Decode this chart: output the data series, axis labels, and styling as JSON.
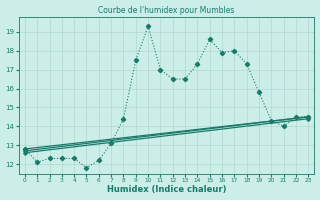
{
  "title": "Courbe de l'humidex pour Mumbles",
  "xlabel": "Humidex (Indice chaleur)",
  "background_color": "#cceee8",
  "grid_color": "#b0d8d0",
  "line_color": "#1a7a6a",
  "xlim": [
    -0.5,
    23.5
  ],
  "ylim": [
    11.5,
    19.8
  ],
  "xticks": [
    0,
    1,
    2,
    3,
    4,
    5,
    6,
    7,
    8,
    9,
    10,
    11,
    12,
    13,
    14,
    15,
    16,
    17,
    18,
    19,
    20,
    21,
    22,
    23
  ],
  "yticks": [
    12,
    13,
    14,
    15,
    16,
    17,
    18,
    19
  ],
  "series1_x": [
    0,
    1,
    2,
    3,
    4,
    5,
    6,
    7,
    8,
    9,
    10,
    11,
    12,
    13,
    14,
    15,
    16,
    17,
    18,
    19,
    20,
    21,
    22,
    23
  ],
  "series1_y": [
    12.8,
    12.1,
    12.3,
    12.3,
    12.3,
    11.8,
    12.2,
    13.1,
    14.4,
    17.5,
    19.3,
    17.0,
    16.5,
    16.5,
    17.3,
    18.6,
    17.9,
    18.0,
    17.3,
    15.8,
    14.3,
    14.0,
    14.5,
    14.5
  ],
  "series2_x": [
    0,
    23
  ],
  "series2_y": [
    12.8,
    14.5
  ],
  "series3_x": [
    0,
    23
  ],
  "series3_y": [
    12.7,
    14.5
  ],
  "series4_x": [
    0,
    23
  ],
  "series4_y": [
    12.6,
    14.4
  ]
}
